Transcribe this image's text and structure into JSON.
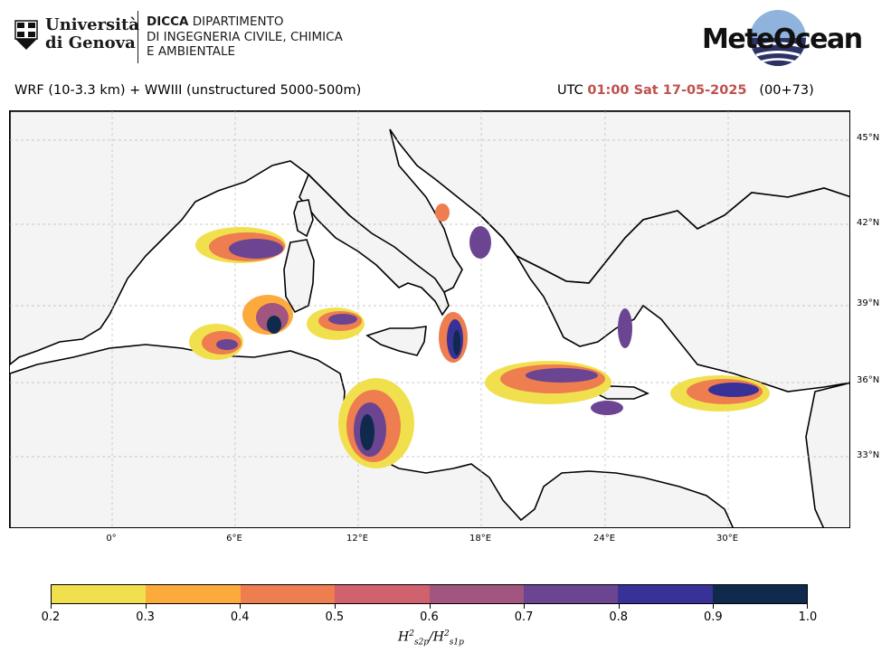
{
  "header": {
    "university_line1": "Università",
    "university_line2": "di Genova",
    "dept_bold": "DICCA",
    "dept_line1_rest": " DIPARTIMENTO",
    "dept_line2": "DI INGEGNERIA CIVILE, CHIMICA",
    "dept_line3": "E AMBIENTALE",
    "brand": "MeteOcean"
  },
  "title": {
    "model": "WRF (10-3.3 km) + WWIII (unstructured 5000-500m)",
    "utc_prefix": "UTC ",
    "time": "01:00 Sat 17-05-2025",
    "forecast": "   (00+73)"
  },
  "map": {
    "lat_labels": [
      "45°N",
      "42°N",
      "39°N",
      "36°N",
      "33°N"
    ],
    "lon_labels": [
      "0°",
      "6°E",
      "12°E",
      "18°E",
      "24°E",
      "30°E"
    ],
    "colors": {
      "sea": "#ffffff",
      "land": "#f4f4f4",
      "coast": "#000000",
      "border": "#666666",
      "grid": "#bbbbbb"
    }
  },
  "colorbar": {
    "ticks": [
      "0.2",
      "0.3",
      "0.4",
      "0.5",
      "0.6",
      "0.7",
      "0.8",
      "0.9",
      "1.0"
    ],
    "colors": [
      "#f1e04d",
      "#fdaa3c",
      "#ee7d4f",
      "#cf626e",
      "#a2557e",
      "#6b4591",
      "#383198",
      "#0f2a4c"
    ],
    "label": "H²s2p/H²s1p"
  }
}
